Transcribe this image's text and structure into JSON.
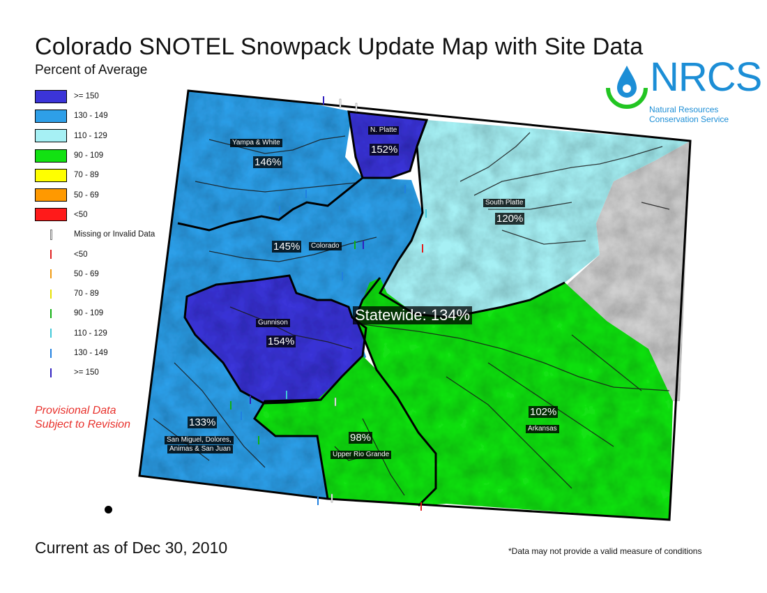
{
  "header": {
    "title": "Colorado SNOTEL Snowpack Update Map with Site Data",
    "subtitle": "Percent of Average"
  },
  "legend": {
    "basin_classes": [
      {
        "label": ">= 150",
        "color": "#3b34d8"
      },
      {
        "label": "130 - 149",
        "color": "#2e9fe8"
      },
      {
        "label": "110 - 129",
        "color": "#a6f0f4"
      },
      {
        "label": "90 - 109",
        "color": "#12e212"
      },
      {
        "label": "70 - 89",
        "color": "#ffff00"
      },
      {
        "label": "50 - 69",
        "color": "#ff9900"
      },
      {
        "label": "<50",
        "color": "#ff1a1a"
      }
    ],
    "site_classes": [
      {
        "label": "Missing or Invalid Data",
        "color": "#ffffff"
      },
      {
        "label": "<50",
        "color": "#e02020"
      },
      {
        "label": "50 - 69",
        "color": "#f09a10"
      },
      {
        "label": "70 - 89",
        "color": "#e6e000"
      },
      {
        "label": "90 - 109",
        "color": "#10b010"
      },
      {
        "label": "110 - 129",
        "color": "#40c8d8"
      },
      {
        "label": "130 - 149",
        "color": "#2080e0"
      },
      {
        "label": ">= 150",
        "color": "#3020c0"
      }
    ]
  },
  "provisional": {
    "line1": "Provisional Data",
    "line2": "Subject to Revision"
  },
  "basins": {
    "yampa_white": {
      "name": "Yampa & White",
      "pct": "146%"
    },
    "n_platte": {
      "name": "N. Platte",
      "pct": "152%"
    },
    "south_platte": {
      "name": "South Platte",
      "pct": "120%"
    },
    "colorado": {
      "name": "Colorado",
      "pct": "145%"
    },
    "gunnison": {
      "name": "Gunnison",
      "pct": "154%"
    },
    "san_miguel": {
      "name_line1": "San Miguel, Dolores,",
      "name_line2": "Animas & San Juan",
      "pct": "133%"
    },
    "upper_rio_grande": {
      "name": "Upper Rio Grande",
      "pct": "98%"
    },
    "arkansas": {
      "name": "Arkansas",
      "pct": "102%"
    }
  },
  "statewide": "Statewide: 134%",
  "logo": {
    "word": "NRCS",
    "line1": "Natural Resources",
    "line2": "Conservation Service",
    "color": "#1c8ed6"
  },
  "footer": {
    "current_as_of": "Current as of Dec 30, 2010",
    "note": "*Data may not provide a valid measure of conditions"
  },
  "colors": {
    "gray_region": "#cfcfcf"
  }
}
